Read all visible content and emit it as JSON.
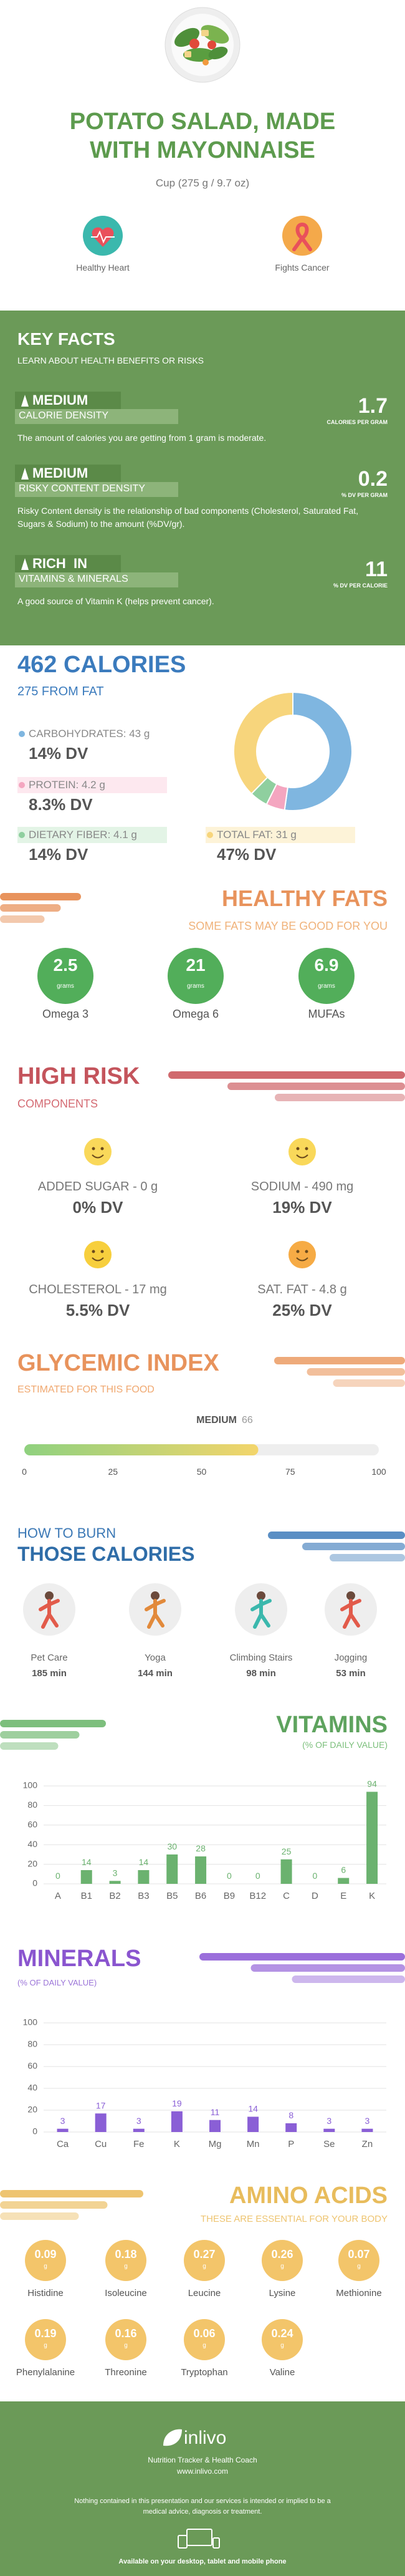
{
  "header": {
    "title": "POTATO SALAD, MADE WITH MAYONNAISE",
    "serving": "Cup (275 g / 9.7 oz)",
    "benefits": [
      "Healthy Heart",
      "Fights Cancer"
    ]
  },
  "key_facts": {
    "title": "KEY FACTS",
    "subtitle": "LEARN ABOUT HEALTH BENEFITS OR RISKS",
    "items": [
      {
        "level": "MEDIUM",
        "name": "CALORIE DENSITY",
        "value": 1.7,
        "unit": "CALORIES PER GRAM",
        "text": "The amount of calories you are getting from 1 gram is moderate."
      },
      {
        "level": "MEDIUM",
        "name": "RISKY CONTENT DENSITY",
        "value": 0.2,
        "unit": "% DV PER GRAM",
        "text": "Risky Content density is the relationship of bad components (Cholesterol, Saturated Fat, Sugars & Sodium) to the amount (%DV/gr)."
      },
      {
        "level": "RICH  IN",
        "name": "VITAMINS & MINERALS",
        "value": 11,
        "unit": "% DV PER CALORIE",
        "text": "A good source of Vitamin K (helps prevent cancer)."
      }
    ]
  },
  "calories": {
    "title": "462 CALORIES",
    "subtitle": "275 FROM FAT"
  },
  "chart_data": [
    {
      "type": "pie",
      "categories": [
        "CARBOHYDRATES: 43 g",
        "PROTEIN: 4.2 g",
        "DIETARY FIBER: 4.1 g",
        "TOTAL FAT: 31 g"
      ],
      "values": [
        43,
        4.2,
        4.1,
        31
      ],
      "dv": [
        "14% DV",
        "8.3% DV",
        "14% DV",
        "47% DV"
      ],
      "colors": [
        "#7fb6e0",
        "#f4a6c0",
        "#8fcf9f",
        "#f7d57c"
      ]
    },
    {
      "type": "bar",
      "title": "VITAMINS",
      "subtitle": "(% OF DAILY VALUE)",
      "categories": [
        "A",
        "B1",
        "B2",
        "B3",
        "B5",
        "B6",
        "B9",
        "B12",
        "C",
        "D",
        "E",
        "K"
      ],
      "values": [
        0,
        14,
        3,
        14,
        30,
        28,
        0,
        0,
        25,
        0,
        6,
        94
      ],
      "color": "#6bb26f",
      "ylim": [
        0,
        100
      ],
      "yticks": [
        0,
        20,
        40,
        60,
        80,
        100
      ],
      "grid": true
    },
    {
      "type": "bar",
      "title": "MINERALS",
      "subtitle": "(% OF DAILY VALUE)",
      "categories": [
        "Ca",
        "Cu",
        "Fe",
        "K",
        "Mg",
        "Mn",
        "P",
        "Se",
        "Zn"
      ],
      "values": [
        3,
        17,
        3,
        19,
        11,
        14,
        8,
        3,
        3
      ],
      "color": "#8a5fd6",
      "ylim": [
        0,
        100
      ],
      "yticks": [
        0,
        20,
        40,
        60,
        80,
        100
      ],
      "grid": true
    }
  ],
  "healthy_fats": {
    "title": "HEALTHY FATS",
    "subtitle": "SOME FATS MAY BE GOOD FOR YOU",
    "unit": "grams",
    "items": [
      {
        "name": "Omega 3",
        "value": 2.5
      },
      {
        "name": "Omega 6",
        "value": 21
      },
      {
        "name": "MUFAs",
        "value": 6.9
      }
    ]
  },
  "high_risk": {
    "title": "HIGH RISK",
    "subtitle": "COMPONENTS",
    "items": [
      {
        "name": "ADDED SUGAR - 0 g",
        "dv": "0% DV"
      },
      {
        "name": "SODIUM - 490 mg",
        "dv": "19% DV"
      },
      {
        "name": "CHOLESTEROL - 17 mg",
        "dv": "5.5% DV"
      },
      {
        "name": "SAT. FAT - 4.8 g",
        "dv": "25% DV"
      }
    ]
  },
  "glycemic": {
    "title": "GLYCEMIC INDEX",
    "subtitle": "ESTIMATED FOR THIS FOOD",
    "level": "MEDIUM",
    "value": 66,
    "range": [
      0,
      100
    ],
    "ticks": [
      0,
      25,
      50,
      75,
      100
    ]
  },
  "burn": {
    "title_1": "HOW TO BURN",
    "title_2": "THOSE CALORIES",
    "activities": [
      {
        "name": "Pet Care",
        "time": "185 min"
      },
      {
        "name": "Yoga",
        "time": "144 min"
      },
      {
        "name": "Climbing Stairs",
        "time": "98 min"
      },
      {
        "name": "Jogging",
        "time": "53 min"
      }
    ]
  },
  "amino_acids": {
    "title": "AMINO ACIDS",
    "subtitle": "THESE ARE ESSENTIAL FOR YOUR BODY",
    "unit": "g",
    "items": [
      {
        "name": "Histidine",
        "value": 0.09
      },
      {
        "name": "Isoleucine",
        "value": 0.18
      },
      {
        "name": "Leucine",
        "value": 0.27
      },
      {
        "name": "Lysine",
        "value": 0.26
      },
      {
        "name": "Methionine",
        "value": 0.07
      },
      {
        "name": "Phenylalanine",
        "value": 0.19
      },
      {
        "name": "Threonine",
        "value": 0.16
      },
      {
        "name": "Tryptophan",
        "value": 0.06
      },
      {
        "name": "Valine",
        "value": 0.24
      }
    ]
  },
  "footer": {
    "brand": "inlivo",
    "tagline": "Nutrition Tracker & Health Coach",
    "url": "www.inlivo.com",
    "disclaimer": "Nothing contained in this presentation and our services is intended or implied to be a medical advice, diagnosis or treatment.",
    "available": "Available on your desktop, tablet and mobile phone"
  }
}
